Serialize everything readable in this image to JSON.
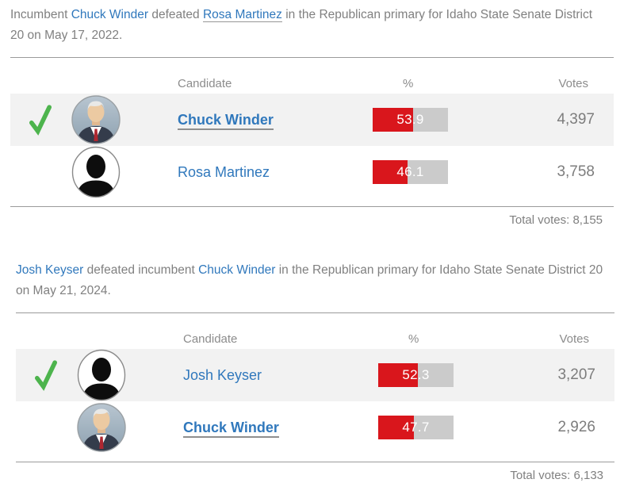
{
  "colors": {
    "bar_red": "#d9161c",
    "bar_track_gray": "#cbcbcb",
    "winner_check_green": "#4db44d",
    "link_blue": "#3078bc",
    "row_highlight": "#f2f2f2"
  },
  "sections": [
    {
      "intro": {
        "pre": "Incumbent ",
        "link1": "Chuck Winder",
        "mid": " defeated ",
        "link2": "Rosa Martinez",
        "post": " in the Republican primary for Idaho State Senate District 20 on May 17, 2022."
      },
      "headers": {
        "candidate": "Candidate",
        "percent": "%",
        "votes": "Votes"
      },
      "rows": [
        {
          "name": "Chuck Winder",
          "percent": 53.9,
          "percent_label": "53.9",
          "votes": "4,397",
          "winner": true,
          "avatar": "chuck-winder-photo"
        },
        {
          "name": "Rosa Martinez",
          "percent": 46.1,
          "percent_label": "46.1",
          "votes": "3,758",
          "winner": false,
          "avatar": "person-silhouette"
        }
      ],
      "total": "Total votes: 8,155"
    },
    {
      "intro": {
        "pre": "",
        "link1": "Josh Keyser",
        "mid": " defeated incumbent ",
        "link2": "Chuck Winder",
        "post": " in the Republican primary for Idaho State Senate District 20 on May 21, 2024."
      },
      "headers": {
        "candidate": "Candidate",
        "percent": "%",
        "votes": "Votes"
      },
      "rows": [
        {
          "name": "Josh Keyser",
          "percent": 52.3,
          "percent_label": "52.3",
          "votes": "3,207",
          "winner": true,
          "avatar": "person-silhouette"
        },
        {
          "name": "Chuck Winder",
          "percent": 47.7,
          "percent_label": "47.7",
          "votes": "2,926",
          "winner": false,
          "avatar": "chuck-winder-photo"
        }
      ],
      "total": "Total votes: 6,133"
    }
  ]
}
